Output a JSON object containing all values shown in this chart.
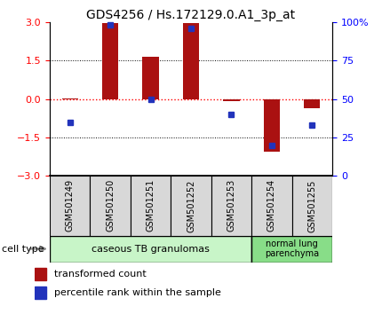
{
  "title": "GDS4256 / Hs.172129.0.A1_3p_at",
  "samples": [
    "GSM501249",
    "GSM501250",
    "GSM501251",
    "GSM501252",
    "GSM501253",
    "GSM501254",
    "GSM501255"
  ],
  "red_values": [
    0.02,
    2.95,
    1.65,
    2.95,
    -0.08,
    -2.05,
    -0.38
  ],
  "blue_values_pct": [
    35,
    98,
    50,
    96,
    40,
    20,
    33
  ],
  "ylim": [
    -3,
    3
  ],
  "left_yticks": [
    -3,
    -1.5,
    0,
    1.5,
    3
  ],
  "right_yticks_pct": [
    0,
    25,
    50,
    75,
    100
  ],
  "right_ytick_labels": [
    "0",
    "25",
    "50",
    "75",
    "100%"
  ],
  "red_color": "#aa1111",
  "blue_color": "#2233bb",
  "bar_width": 0.4,
  "group1_label": "caseous TB granulomas",
  "group2_label": "normal lung\nparenchyma",
  "group1_count": 5,
  "group2_count": 2,
  "cell_type_label": "cell type",
  "legend_red": "transformed count",
  "legend_blue": "percentile rank within the sample",
  "group1_color": "#c8f5c8",
  "group2_color": "#88dd88",
  "sample_box_color": "#d8d8d8",
  "title_fontsize": 10,
  "axis_fontsize": 8,
  "legend_fontsize": 8,
  "sample_fontsize": 7
}
